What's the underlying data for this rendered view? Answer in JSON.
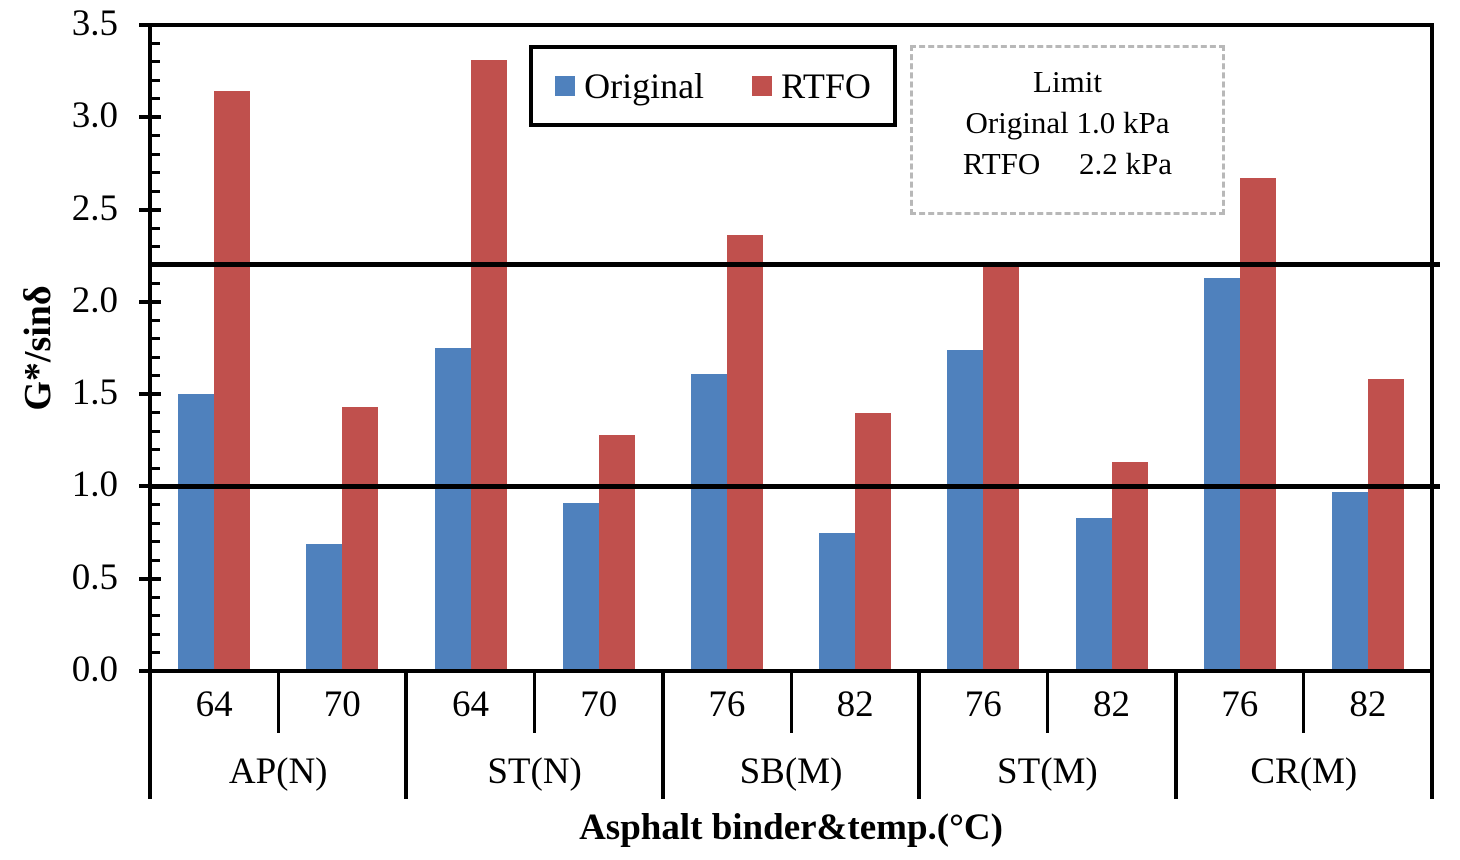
{
  "chart_data": {
    "type": "bar",
    "title": "",
    "xlabel": "Asphalt binder&temp.(°C)",
    "ylabel": "G*/sinδ",
    "ylim": [
      0.0,
      3.5
    ],
    "ytick_labels": [
      "0.0",
      "0.5",
      "1.0",
      "1.5",
      "2.0",
      "2.5",
      "3.0",
      "3.5"
    ],
    "minor_tick_step": 0.1,
    "grid": false,
    "legend_position": "top-center-inside",
    "series": [
      {
        "name": "Original",
        "color": "#4F81BD"
      },
      {
        "name": "RTFO",
        "color": "#C0504D"
      }
    ],
    "groups": [
      {
        "binder": "AP(N)",
        "temps": [
          {
            "temp": "64",
            "values": [
              1.5,
              3.14
            ]
          },
          {
            "temp": "70",
            "values": [
              0.69,
              1.43
            ]
          }
        ]
      },
      {
        "binder": "ST(N)",
        "temps": [
          {
            "temp": "64",
            "values": [
              1.75,
              3.31
            ]
          },
          {
            "temp": "70",
            "values": [
              0.91,
              1.28
            ]
          }
        ]
      },
      {
        "binder": "SB(M)",
        "temps": [
          {
            "temp": "76",
            "values": [
              1.61,
              2.36
            ]
          },
          {
            "temp": "82",
            "values": [
              0.75,
              1.4
            ]
          }
        ]
      },
      {
        "binder": "ST(M)",
        "temps": [
          {
            "temp": "76",
            "values": [
              1.74,
              2.21
            ]
          },
          {
            "temp": "82",
            "values": [
              0.83,
              1.13
            ]
          }
        ]
      },
      {
        "binder": "CR(M)",
        "temps": [
          {
            "temp": "76",
            "values": [
              2.13,
              2.67
            ]
          },
          {
            "temp": "82",
            "values": [
              0.97,
              1.58
            ]
          }
        ]
      }
    ],
    "limit_lines": [
      {
        "label": "Original limit",
        "value": 1.0,
        "color": "#000000"
      },
      {
        "label": "RTFO limit",
        "value": 2.2,
        "color": "#000000"
      }
    ],
    "annotation_box": {
      "title": "Limit",
      "lines": [
        "Original 1.0 kPa",
        "RTFO     2.2 kPa"
      ],
      "border_color": "#b8b8b8"
    }
  }
}
